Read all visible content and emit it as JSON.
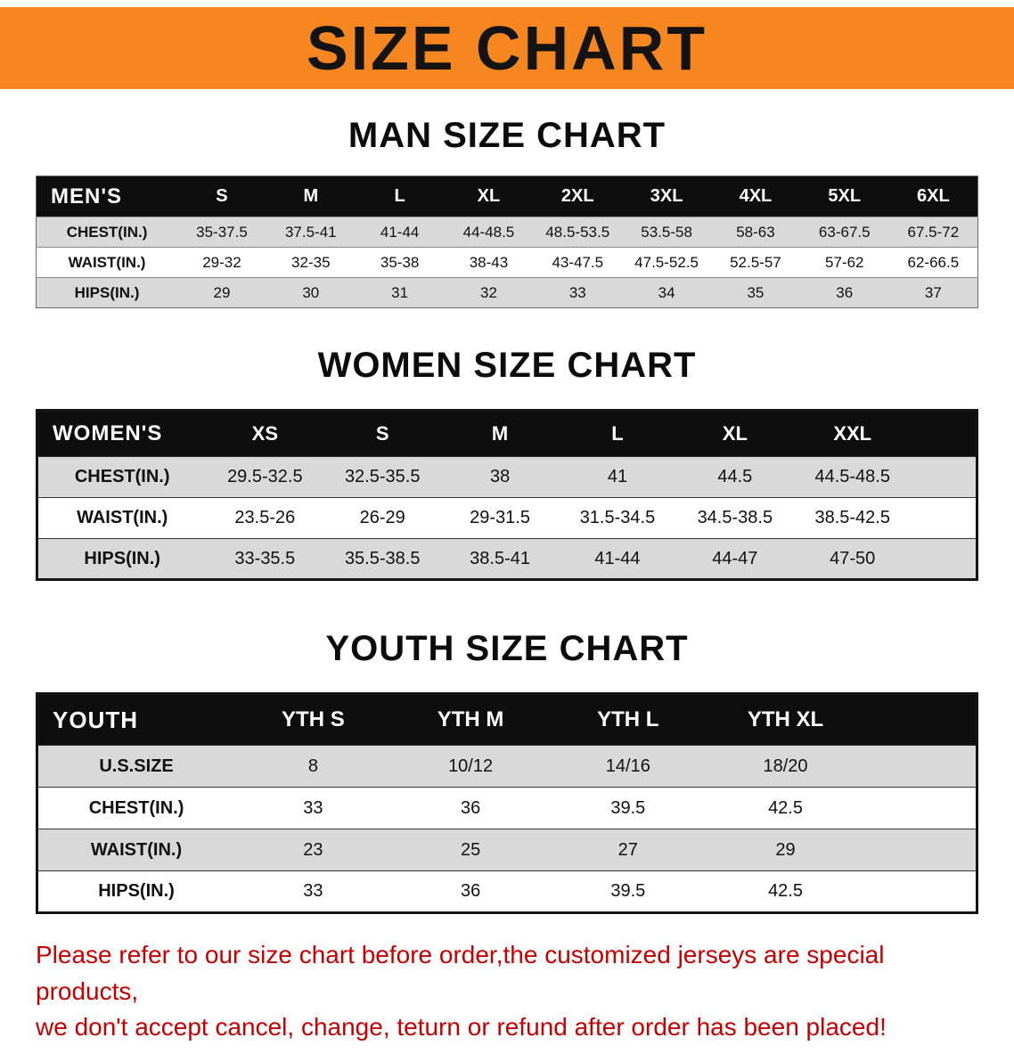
{
  "colors": {
    "banner_bg": "#f6861f",
    "header_bar": "#0e0e0e",
    "row_alt": "#d9d9d9",
    "note_red": "#c60000",
    "text": "#111111"
  },
  "banner": {
    "title": "SIZE CHART"
  },
  "sections": {
    "men": {
      "heading": "MAN SIZE CHART",
      "table": {
        "header": [
          "MEN'S",
          "S",
          "M",
          "L",
          "XL",
          "2XL",
          "3XL",
          "4XL",
          "5XL",
          "6XL"
        ],
        "rows": [
          [
            "CHEST(IN.)",
            "35-37.5",
            "37.5-41",
            "41-44",
            "44-48.5",
            "48.5-53.5",
            "53.5-58",
            "58-63",
            "63-67.5",
            "67.5-72"
          ],
          [
            "WAIST(IN.)",
            "29-32",
            "32-35",
            "35-38",
            "38-43",
            "43-47.5",
            "47.5-52.5",
            "52.5-57",
            "57-62",
            "62-66.5"
          ],
          [
            "HIPS(IN.)",
            "29",
            "30",
            "31",
            "32",
            "33",
            "34",
            "35",
            "36",
            "37"
          ]
        ]
      }
    },
    "women": {
      "heading": "WOMEN SIZE CHART",
      "table": {
        "header": [
          "WOMEN'S",
          "XS",
          "S",
          "M",
          "L",
          "XL",
          "XXL"
        ],
        "rows": [
          [
            "CHEST(IN.)",
            "29.5-32.5",
            "32.5-35.5",
            "38",
            "41",
            "44.5",
            "44.5-48.5"
          ],
          [
            "WAIST(IN.)",
            "23.5-26",
            "26-29",
            "29-31.5",
            "31.5-34.5",
            "34.5-38.5",
            "38.5-42.5"
          ],
          [
            "HIPS(IN.)",
            "33-35.5",
            "35.5-38.5",
            "38.5-41",
            "41-44",
            "44-47",
            "47-50"
          ]
        ]
      }
    },
    "youth": {
      "heading": "YOUTH SIZE CHART",
      "table": {
        "header": [
          "YOUTH",
          "YTH S",
          "YTH M",
          "YTH L",
          "YTH XL"
        ],
        "rows": [
          [
            "U.S.SIZE",
            "8",
            "10/12",
            "14/16",
            "18/20"
          ],
          [
            "CHEST(IN.)",
            "33",
            "36",
            "39.5",
            "42.5"
          ],
          [
            "WAIST(IN.)",
            "23",
            "25",
            "27",
            "29"
          ],
          [
            "HIPS(IN.)",
            "33",
            "36",
            "39.5",
            "42.5"
          ]
        ]
      }
    }
  },
  "footer": {
    "line1": "Please refer to our size chart before order,the customized jerseys are special products,",
    "line2": "we don't accept cancel, change, teturn or refund after order has been placed!"
  }
}
